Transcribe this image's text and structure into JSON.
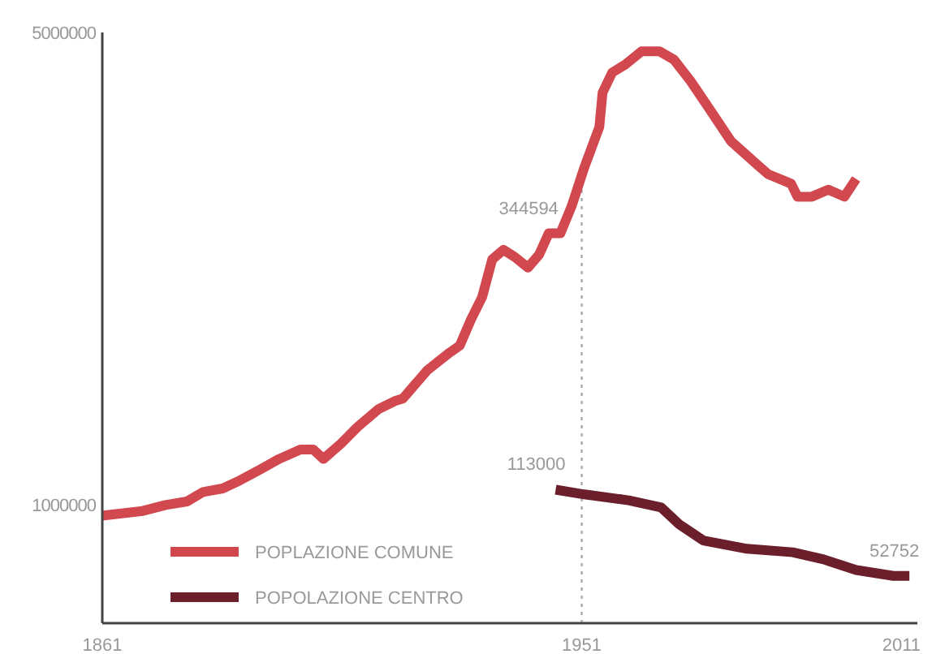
{
  "chart_data": {
    "type": "line",
    "xlim": [
      1861,
      2014
    ],
    "xticks": [
      1861,
      1951,
      2011
    ],
    "ylim": [
      0,
      5000000
    ],
    "yticks": [
      1000000,
      5000000
    ],
    "grid": false,
    "legend": "bottom left",
    "marker": "none",
    "line_style": "solid",
    "ref_lines": [
      {
        "axis": "x",
        "value": 1951,
        "color": "#aaaaaa",
        "line_style": "dotted"
      }
    ],
    "annotations": [
      {
        "text": "344594",
        "x": 1944.8,
        "y": 3300000
      },
      {
        "text": "113000",
        "x": 1946.1,
        "y": 1130000
      },
      {
        "text": "52752",
        "x": 2012.5,
        "y": 400000
      }
    ],
    "series": [
      {
        "name": "POPLAZIONE COMUNE",
        "color": "#d2484f",
        "x": [
          1861,
          1868.6,
          1872.9,
          1876.9,
          1879.9,
          1883.6,
          1886.9,
          1890.6,
          1894.2,
          1898.2,
          1900.6,
          1902.5,
          1905.8,
          1908.9,
          1912.8,
          1915.9,
          1917.4,
          1922,
          1926.2,
          1928.1,
          1930.2,
          1932.3,
          1934.2,
          1936.3,
          1938.4,
          1940.9,
          1943,
          1944.8,
          1947,
          1949.1,
          1951.5,
          1954.3,
          1954.9,
          1956.7,
          1959.2,
          1962.2,
          1965.6,
          1968.3,
          1971.4,
          1975,
          1979,
          1984.2,
          1986,
          1990.3,
          1991.5,
          1994.2,
          1997.3,
          2000.3,
          2002.5
        ],
        "values": [
          910000,
          950000,
          1000000,
          1030000,
          1110000,
          1140000,
          1210000,
          1300000,
          1390000,
          1470000,
          1470000,
          1390000,
          1520000,
          1660000,
          1810000,
          1880000,
          1900000,
          2140000,
          2290000,
          2350000,
          2570000,
          2760000,
          3080000,
          3160000,
          3100000,
          3010000,
          3120000,
          3300000,
          3300000,
          3530000,
          3860000,
          4200000,
          4490000,
          4660000,
          4730000,
          4840000,
          4840000,
          4770000,
          4590000,
          4350000,
          4080000,
          3870000,
          3800000,
          3720000,
          3610000,
          3610000,
          3670000,
          3610000,
          3760000
        ]
      },
      {
        "name": "POPOLAZIONE CENTRO",
        "color": "#6b1f2a",
        "x": [
          1946.1,
          1951.5,
          1959.8,
          1965.9,
          1969.2,
          1973.8,
          1982,
          1990.6,
          1996.4,
          2002.5,
          2009.5,
          2012.5
        ],
        "values": [
          1130000,
          1090000,
          1040000,
          980000,
          840000,
          700000,
          630000,
          600000,
          540000,
          450000,
          400000,
          400000
        ]
      }
    ]
  }
}
